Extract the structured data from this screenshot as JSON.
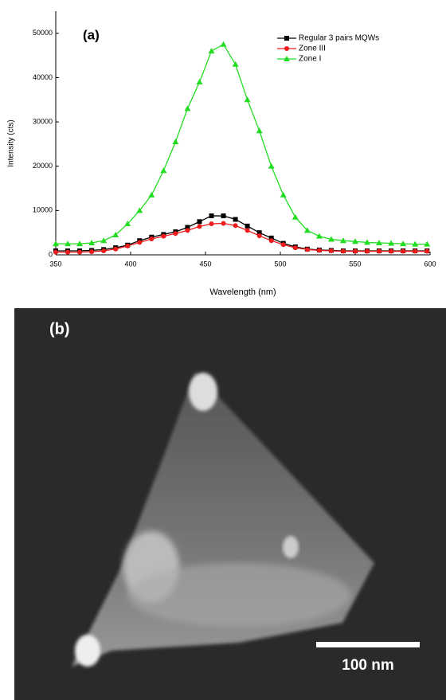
{
  "chart_data": {
    "type": "line",
    "annotation": "(a)",
    "x_label": "Wavelength (nm)",
    "y_label": "Intensity (cts)",
    "x": [
      350,
      358,
      366,
      374,
      382,
      390,
      398,
      406,
      414,
      422,
      430,
      438,
      446,
      454,
      462,
      470,
      478,
      486,
      494,
      502,
      510,
      518,
      526,
      534,
      542,
      550,
      558,
      566,
      574,
      582,
      590,
      598
    ],
    "series": [
      {
        "name": "Regular 3 pairs MQWs",
        "color": "#000000",
        "marker": "square",
        "values": [
          900,
          900,
          900,
          1000,
          1200,
          1600,
          2200,
          3200,
          4000,
          4600,
          5200,
          6200,
          7500,
          8800,
          8800,
          8000,
          6500,
          5000,
          3800,
          2600,
          1800,
          1300,
          1100,
          1000,
          900,
          900,
          900,
          900,
          900,
          900,
          900,
          900
        ]
      },
      {
        "name": "Zone III",
        "color": "#ee1c1c",
        "marker": "circle",
        "values": [
          600,
          600,
          600,
          700,
          900,
          1300,
          2000,
          2800,
          3600,
          4200,
          4800,
          5500,
          6400,
          7000,
          7100,
          6600,
          5500,
          4300,
          3200,
          2300,
          1600,
          1200,
          1000,
          900,
          800,
          800,
          800,
          800,
          800,
          800,
          800,
          800
        ]
      },
      {
        "name": "Zone  I",
        "color": "#22dd22",
        "marker": "triangle",
        "values": [
          2500,
          2500,
          2500,
          2700,
          3200,
          4500,
          7000,
          10000,
          13500,
          19000,
          25500,
          33000,
          39000,
          46000,
          47500,
          43000,
          35000,
          28000,
          20000,
          13500,
          8500,
          5500,
          4200,
          3500,
          3200,
          3000,
          2800,
          2700,
          2600,
          2500,
          2400,
          2400
        ]
      }
    ],
    "xlim": [
      350,
      600
    ],
    "xticks": [
      350,
      400,
      450,
      500,
      550,
      600
    ],
    "ylim": [
      0,
      55000
    ],
    "yticks": [
      0,
      10000,
      20000,
      30000,
      40000,
      50000
    ],
    "grid": false,
    "legend": "top-right"
  },
  "panel_b": {
    "label": "(b)",
    "scale_bar": "100 nm"
  }
}
